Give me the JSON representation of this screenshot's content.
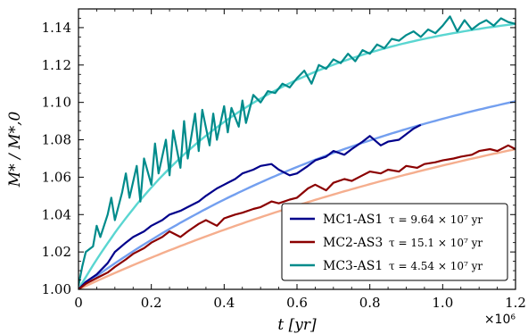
{
  "chart_data": {
    "type": "line",
    "xlabel": "t [yr]",
    "ylabel": "M* / M*,0",
    "x_multiplier_label": "×10⁶",
    "xlim": [
      0,
      1.2
    ],
    "ylim": [
      1.0,
      1.15
    ],
    "x_ticks": [
      0,
      0.2,
      0.4,
      0.6,
      0.8,
      1.0,
      1.2
    ],
    "x_tick_labels": [
      "0",
      "0.2",
      "0.4",
      "0.6",
      "0.8",
      "1.0",
      "1.2"
    ],
    "y_ticks": [
      1.0,
      1.02,
      1.04,
      1.06,
      1.08,
      1.1,
      1.12,
      1.14
    ],
    "y_tick_labels": [
      "1.00",
      "1.02",
      "1.04",
      "1.06",
      "1.08",
      "1.10",
      "1.12",
      "1.14"
    ],
    "legend_position": "bottom-right",
    "series": [
      {
        "name": "MC1-AS1",
        "tau_label": "τ = 9.64 × 10⁷ yr",
        "color": "#00008b",
        "fit_color": "#6495ed",
        "tau": 0.964,
        "x": [
          0.0,
          0.02,
          0.05,
          0.08,
          0.1,
          0.13,
          0.15,
          0.18,
          0.2,
          0.23,
          0.25,
          0.28,
          0.3,
          0.33,
          0.35,
          0.38,
          0.4,
          0.43,
          0.45,
          0.48,
          0.5,
          0.53,
          0.55,
          0.58,
          0.6,
          0.63,
          0.65,
          0.68,
          0.7,
          0.73,
          0.75,
          0.78,
          0.8,
          0.83,
          0.85,
          0.88,
          0.9,
          0.92,
          0.94
        ],
        "values": [
          1.0,
          1.004,
          1.008,
          1.014,
          1.02,
          1.025,
          1.028,
          1.031,
          1.034,
          1.037,
          1.04,
          1.042,
          1.044,
          1.047,
          1.05,
          1.054,
          1.056,
          1.059,
          1.062,
          1.064,
          1.066,
          1.067,
          1.064,
          1.061,
          1.062,
          1.066,
          1.069,
          1.071,
          1.074,
          1.072,
          1.075,
          1.079,
          1.082,
          1.077,
          1.079,
          1.08,
          1.083,
          1.086,
          1.088
        ]
      },
      {
        "name": "MC2-AS3",
        "tau_label": "τ = 15.1 × 10⁷ yr",
        "color": "#8b0000",
        "fit_color": "#f4a582",
        "tau": 1.51,
        "x": [
          0.0,
          0.02,
          0.05,
          0.08,
          0.1,
          0.13,
          0.15,
          0.18,
          0.2,
          0.23,
          0.25,
          0.28,
          0.3,
          0.33,
          0.35,
          0.38,
          0.4,
          0.43,
          0.45,
          0.48,
          0.5,
          0.53,
          0.55,
          0.58,
          0.6,
          0.63,
          0.65,
          0.68,
          0.7,
          0.73,
          0.75,
          0.78,
          0.8,
          0.83,
          0.85,
          0.88,
          0.9,
          0.93,
          0.95,
          0.98,
          1.0,
          1.03,
          1.05,
          1.08,
          1.1,
          1.13,
          1.15,
          1.18,
          1.2
        ],
        "values": [
          1.0,
          1.003,
          1.006,
          1.009,
          1.012,
          1.016,
          1.019,
          1.022,
          1.025,
          1.028,
          1.031,
          1.028,
          1.031,
          1.035,
          1.037,
          1.034,
          1.038,
          1.04,
          1.041,
          1.043,
          1.044,
          1.047,
          1.046,
          1.048,
          1.049,
          1.054,
          1.056,
          1.053,
          1.057,
          1.059,
          1.058,
          1.061,
          1.063,
          1.062,
          1.064,
          1.063,
          1.066,
          1.065,
          1.067,
          1.068,
          1.069,
          1.07,
          1.071,
          1.072,
          1.074,
          1.075,
          1.074,
          1.077,
          1.075
        ]
      },
      {
        "name": "MC3-AS1",
        "tau_label": "τ = 4.54 × 10⁷ yr",
        "color": "#008b8b",
        "fit_color": "#48d1cc",
        "tau": 0.454,
        "x": [
          0.0,
          0.01,
          0.02,
          0.04,
          0.05,
          0.06,
          0.08,
          0.09,
          0.1,
          0.12,
          0.13,
          0.14,
          0.16,
          0.17,
          0.18,
          0.2,
          0.21,
          0.22,
          0.24,
          0.25,
          0.26,
          0.28,
          0.29,
          0.3,
          0.32,
          0.33,
          0.34,
          0.36,
          0.37,
          0.38,
          0.4,
          0.41,
          0.42,
          0.44,
          0.45,
          0.46,
          0.48,
          0.5,
          0.52,
          0.54,
          0.56,
          0.58,
          0.6,
          0.62,
          0.64,
          0.66,
          0.68,
          0.7,
          0.72,
          0.74,
          0.76,
          0.78,
          0.8,
          0.82,
          0.84,
          0.86,
          0.88,
          0.9,
          0.92,
          0.94,
          0.96,
          0.98,
          1.0,
          1.02,
          1.04,
          1.06,
          1.08,
          1.1,
          1.12,
          1.14,
          1.16,
          1.18,
          1.2
        ],
        "values": [
          1.002,
          1.012,
          1.02,
          1.023,
          1.034,
          1.028,
          1.04,
          1.049,
          1.037,
          1.052,
          1.062,
          1.049,
          1.066,
          1.047,
          1.07,
          1.056,
          1.078,
          1.062,
          1.08,
          1.061,
          1.085,
          1.065,
          1.09,
          1.07,
          1.094,
          1.074,
          1.096,
          1.077,
          1.094,
          1.08,
          1.098,
          1.084,
          1.097,
          1.087,
          1.101,
          1.089,
          1.104,
          1.1,
          1.106,
          1.105,
          1.11,
          1.108,
          1.113,
          1.117,
          1.11,
          1.12,
          1.118,
          1.123,
          1.121,
          1.126,
          1.122,
          1.128,
          1.126,
          1.131,
          1.129,
          1.134,
          1.133,
          1.136,
          1.138,
          1.135,
          1.139,
          1.137,
          1.141,
          1.146,
          1.138,
          1.144,
          1.139,
          1.142,
          1.144,
          1.141,
          1.145,
          1.143,
          1.142
        ]
      }
    ]
  }
}
